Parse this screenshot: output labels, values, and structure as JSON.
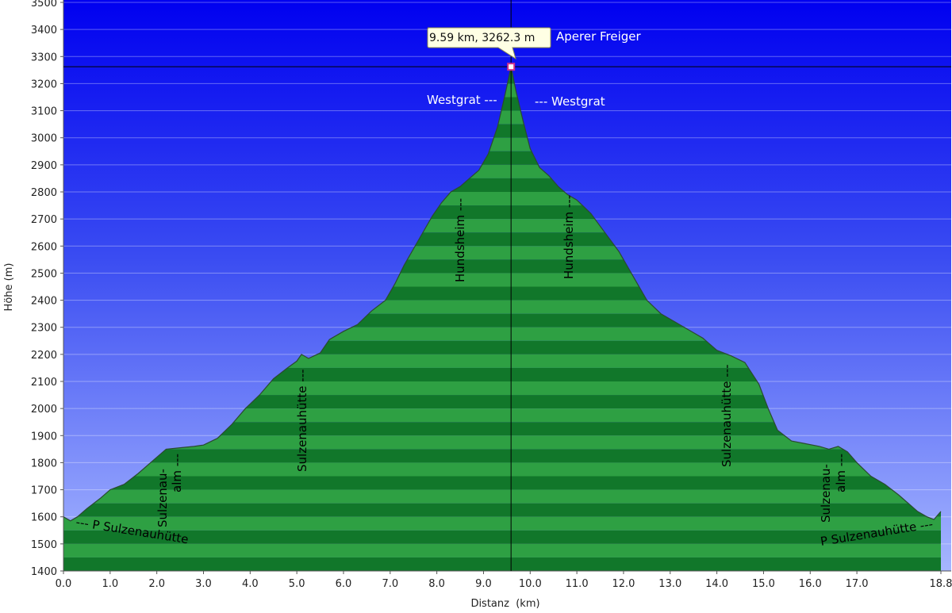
{
  "chart_data": {
    "type": "area",
    "xlabel": "Distanz  (km)",
    "ylabel": "Höhe (m)",
    "xlim": [
      0.0,
      18.8
    ],
    "ylim": [
      1400,
      3500
    ],
    "x_ticks": [
      {
        "v": 0.0,
        "label": "0.0"
      },
      {
        "v": 1.0,
        "label": "1.0"
      },
      {
        "v": 2.0,
        "label": "2.0"
      },
      {
        "v": 3.0,
        "label": "3.0"
      },
      {
        "v": 4.0,
        "label": "4.0"
      },
      {
        "v": 5.0,
        "label": "5.0"
      },
      {
        "v": 6.0,
        "label": "6.0"
      },
      {
        "v": 7.0,
        "label": "7.0"
      },
      {
        "v": 8.0,
        "label": "8.0"
      },
      {
        "v": 9.0,
        "label": "9.0"
      },
      {
        "v": 10.0,
        "label": "10.0"
      },
      {
        "v": 11.0,
        "label": "11.0"
      },
      {
        "v": 12.0,
        "label": "12.0"
      },
      {
        "v": 13.0,
        "label": "13.0"
      },
      {
        "v": 14.0,
        "label": "14.0"
      },
      {
        "v": 15.0,
        "label": "15.0"
      },
      {
        "v": 16.0,
        "label": "16.0"
      },
      {
        "v": 17.0,
        "label": "17.0"
      },
      {
        "v": 18.8,
        "label": "18.8"
      }
    ],
    "y_ticks": [
      1400,
      1500,
      1600,
      1700,
      1800,
      1900,
      2000,
      2100,
      2200,
      2300,
      2400,
      2500,
      2600,
      2700,
      2800,
      2900,
      3000,
      3100,
      3200,
      3300,
      3400,
      3500
    ],
    "profile": {
      "x": [
        0.0,
        0.15,
        0.3,
        0.5,
        0.8,
        1.0,
        1.3,
        1.6,
        1.8,
        2.0,
        2.2,
        2.5,
        2.8,
        3.0,
        3.3,
        3.6,
        3.9,
        4.2,
        4.5,
        4.8,
        5.0,
        5.1,
        5.25,
        5.5,
        5.7,
        6.0,
        6.3,
        6.6,
        6.9,
        7.1,
        7.3,
        7.6,
        7.9,
        8.1,
        8.3,
        8.5,
        8.7,
        8.9,
        9.1,
        9.3,
        9.45,
        9.59,
        9.7,
        9.85,
        10.0,
        10.2,
        10.4,
        10.6,
        10.8,
        11.0,
        11.3,
        11.6,
        11.9,
        12.2,
        12.5,
        12.8,
        13.1,
        13.4,
        13.7,
        14.0,
        14.3,
        14.6,
        14.9,
        15.1,
        15.3,
        15.6,
        15.9,
        16.2,
        16.4,
        16.6,
        16.8,
        17.0,
        17.3,
        17.6,
        17.9,
        18.1,
        18.3,
        18.5,
        18.65,
        18.8
      ],
      "y": [
        1600,
        1585,
        1600,
        1630,
        1670,
        1700,
        1720,
        1760,
        1790,
        1820,
        1850,
        1855,
        1860,
        1865,
        1890,
        1940,
        2000,
        2050,
        2110,
        2150,
        2175,
        2200,
        2185,
        2205,
        2255,
        2285,
        2310,
        2360,
        2400,
        2460,
        2530,
        2620,
        2710,
        2760,
        2800,
        2820,
        2850,
        2880,
        2940,
        3040,
        3150,
        3262,
        3170,
        3060,
        2960,
        2890,
        2860,
        2820,
        2790,
        2770,
        2720,
        2650,
        2580,
        2490,
        2400,
        2350,
        2320,
        2290,
        2260,
        2215,
        2195,
        2170,
        2090,
        2000,
        1920,
        1880,
        1870,
        1860,
        1850,
        1860,
        1840,
        1800,
        1750,
        1720,
        1680,
        1650,
        1620,
        1600,
        1590,
        1620
      ]
    },
    "marker": {
      "x": 9.59,
      "y": 3262.3,
      "tooltip": "9.59 km, 3262.3 m"
    },
    "annotations": [
      {
        "text": "Aperer Freiger",
        "color": "#ffffff"
      },
      {
        "text": "Westgrat ---",
        "color": "#ffffff"
      },
      {
        "text": "--- Westgrat",
        "color": "#ffffff"
      },
      {
        "text": "Hundsheim ---",
        "color": "#000000"
      },
      {
        "text": "Hundsheim ---",
        "color": "#000000"
      },
      {
        "text": "Sulzenauhütte ---",
        "color": "#000000"
      },
      {
        "text": "Sulzenauhütte ---",
        "color": "#000000"
      },
      {
        "text": "Sulzenau-",
        "color": "#000000"
      },
      {
        "text": "alm ---",
        "color": "#000000"
      },
      {
        "text": "Sulzenau-",
        "color": "#000000"
      },
      {
        "text": "alm ---",
        "color": "#000000"
      },
      {
        "text": "--- P Sulzenauhütte",
        "color": "#000000"
      },
      {
        "text": "P Sulzenauhütte ---",
        "color": "#000000"
      }
    ],
    "grid": true,
    "colors": {
      "sky_top": "#0000f0",
      "sky_bottom": "#a6b6ff",
      "fill_light": "#2ea043",
      "fill_dark": "#11772a",
      "outline": "#2a4a30",
      "marker": "#d0308a"
    }
  }
}
